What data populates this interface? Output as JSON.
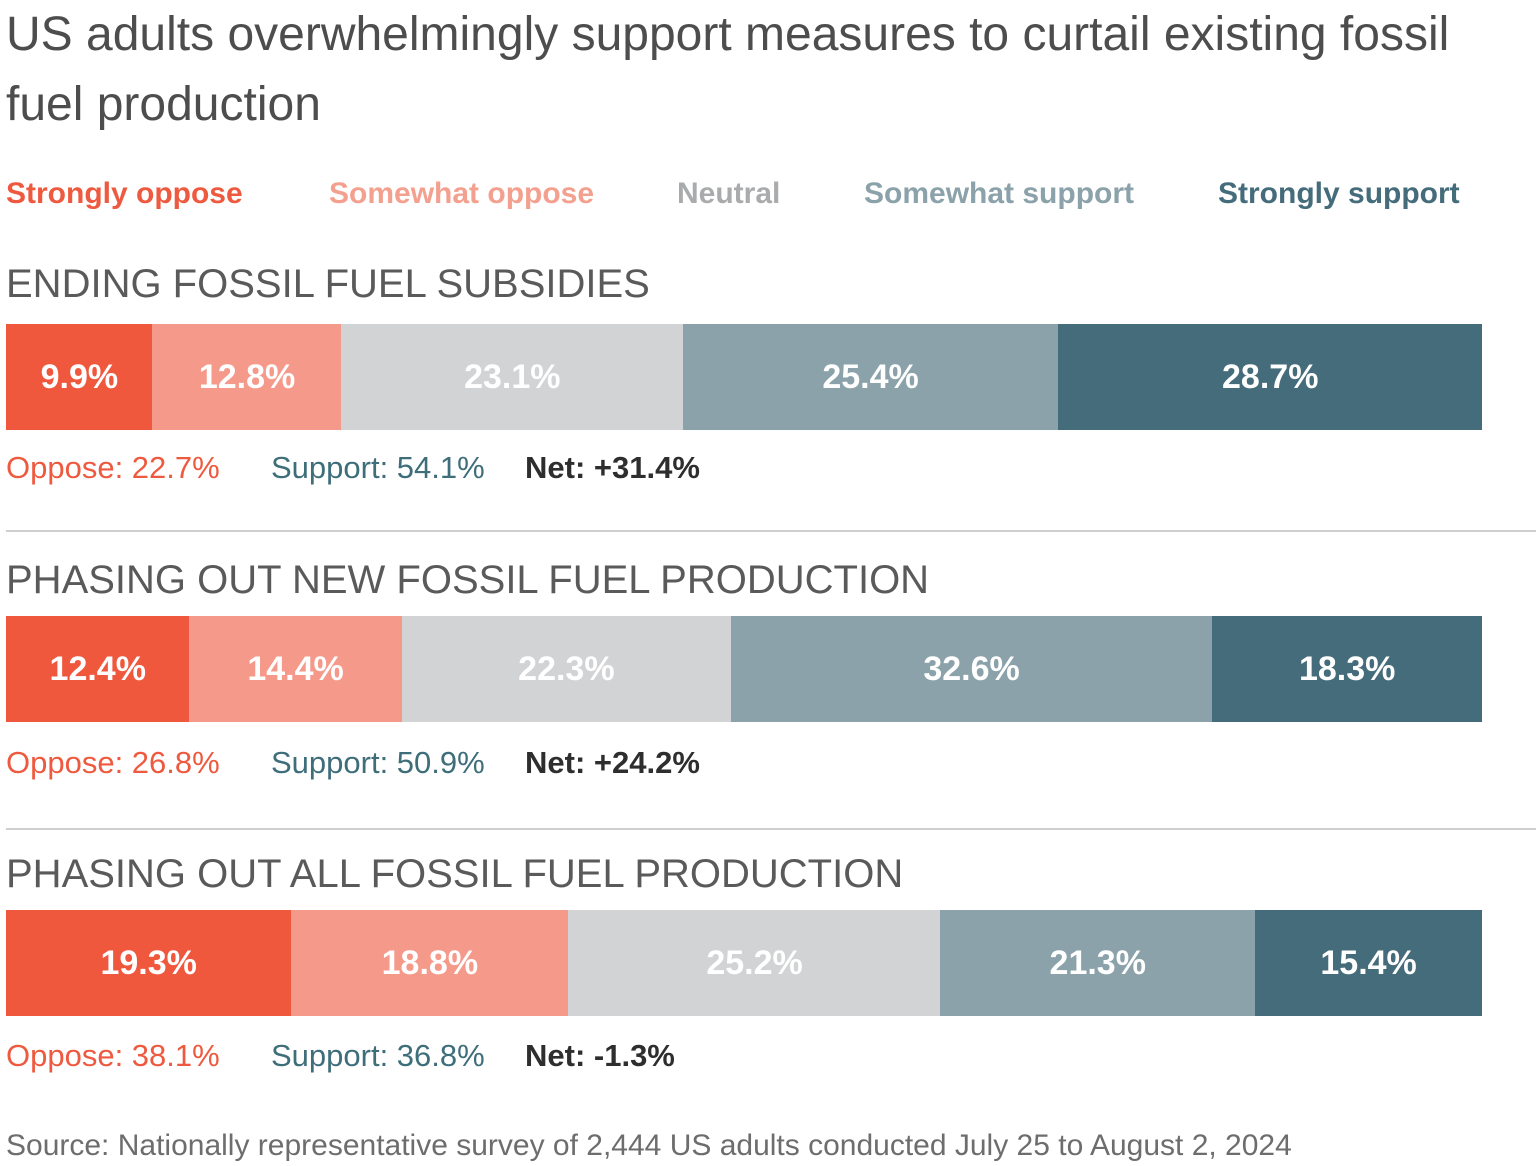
{
  "title": "US adults overwhelmingly support measures to curtail existing fossil fuel production",
  "legend": [
    {
      "label": "Strongly oppose",
      "color": "#f0583e"
    },
    {
      "label": "Somewhat oppose",
      "color": "#f59a8a"
    },
    {
      "label": "Neutral",
      "color": "#d2d3d4"
    },
    {
      "label": "Somewhat support",
      "color": "#8ba2aa"
    },
    {
      "label": "Strongly support",
      "color": "#456c7a"
    }
  ],
  "legend_text_colors": [
    "#ee5a3f",
    "#f4a08f",
    "#a9abad",
    "#8ba2aa",
    "#456c7a"
  ],
  "chart_data": {
    "type": "bar",
    "stacked": true,
    "orientation": "horizontal",
    "series_names": [
      "Strongly oppose",
      "Somewhat oppose",
      "Neutral",
      "Somewhat support",
      "Strongly support"
    ],
    "groups": [
      {
        "title": "ENDING FOSSIL FUEL SUBSIDIES",
        "values": [
          9.9,
          12.8,
          23.1,
          25.4,
          28.7
        ],
        "labels": [
          "9.9%",
          "12.8%",
          "23.1%",
          "25.4%",
          "28.7%"
        ],
        "oppose": "Oppose: 22.7%",
        "support": "Support: 54.1%",
        "net": "Net: +31.4%"
      },
      {
        "title": "PHASING OUT NEW FOSSIL FUEL PRODUCTION",
        "values": [
          12.4,
          14.4,
          22.3,
          32.6,
          18.3
        ],
        "labels": [
          "12.4%",
          "14.4%",
          "22.3%",
          "32.6%",
          "18.3%"
        ],
        "oppose": "Oppose: 26.8%",
        "support": "Support: 50.9%",
        "net": "Net: +24.2%"
      },
      {
        "title": "PHASING OUT ALL FOSSIL FUEL PRODUCTION",
        "values": [
          19.3,
          18.8,
          25.2,
          21.3,
          15.4
        ],
        "labels": [
          "19.3%",
          "18.8%",
          "25.2%",
          "21.3%",
          "15.4%"
        ],
        "oppose": "Oppose: 38.1%",
        "support": "Support: 36.8%",
        "net": "Net: -1.3%"
      }
    ]
  },
  "source": "Source: Nationally representative survey of 2,444 US adults conducted July 25 to August 2, 2024"
}
